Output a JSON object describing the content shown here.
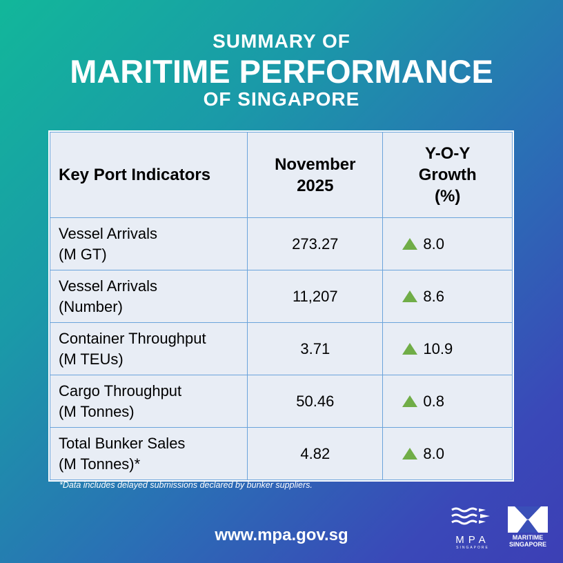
{
  "title": {
    "line1": "SUMMARY OF",
    "line2": "MARITIME PERFORMANCE",
    "line3": "OF SINGAPORE"
  },
  "table": {
    "headers": [
      "Key Port Indicators",
      "November 2025",
      "Y-O-Y Growth (%)"
    ],
    "rows": [
      {
        "indicator": "Vessel Arrivals",
        "unit": "(M GT)",
        "value": "273.27",
        "growth": "8.0",
        "trend": "up"
      },
      {
        "indicator": "Vessel Arrivals",
        "unit": "(Number)",
        "value": "11,207",
        "growth": "8.6",
        "trend": "up"
      },
      {
        "indicator": "Container Throughput",
        "unit": "(M TEUs)",
        "value": "3.71",
        "growth": "10.9",
        "trend": "up"
      },
      {
        "indicator": "Cargo Throughput",
        "unit": "(M Tonnes)",
        "value": "50.46",
        "growth": "0.8",
        "trend": "up"
      },
      {
        "indicator": "Total Bunker Sales",
        "unit": "(M Tonnes)*",
        "value": "4.82",
        "growth": "8.0",
        "trend": "up"
      }
    ]
  },
  "footnote": "*Data includes delayed submissions declared by bunker suppliers.",
  "url": "www.mpa.gov.sg",
  "logos": {
    "mpa": "MPA SINGAPORE",
    "maritime": "MARITIME SINGAPORE"
  },
  "colors": {
    "up_arrow": "#70ad47",
    "cell_bg": "#e8edf5",
    "border": "#6aa3db"
  }
}
